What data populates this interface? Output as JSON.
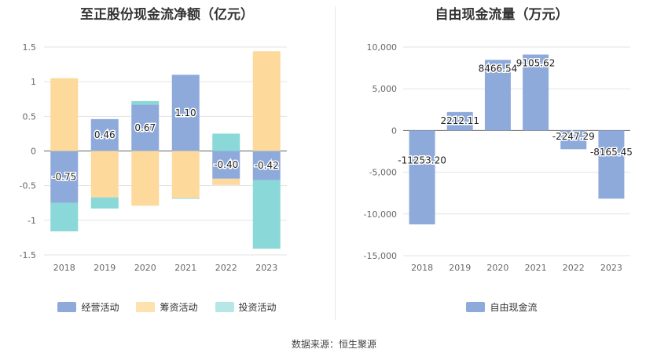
{
  "source": "数据来源：恒生聚源",
  "chart_data": [
    {
      "type": "bar",
      "stacked": true,
      "title": "至正股份现金流净额（亿元）",
      "categories": [
        "2018",
        "2019",
        "2020",
        "2021",
        "2022",
        "2023"
      ],
      "ylim": [
        -1.5,
        1.5
      ],
      "yticks": [
        "1.5",
        "1",
        "0.5",
        "0",
        "-0.5",
        "-1",
        "-1.5"
      ],
      "ytick_values": [
        1.5,
        1,
        0.5,
        0,
        -0.5,
        -1,
        -1.5
      ],
      "grid": true,
      "legend_position": "bottom",
      "series": [
        {
          "name": "经营活动",
          "color": "#8eaadb",
          "values": [
            -0.75,
            0.46,
            0.67,
            1.1,
            -0.4,
            -0.42
          ],
          "labels": [
            "-0.75",
            "0.46",
            "0.67",
            "1.10",
            "-0.40",
            "-0.42"
          ]
        },
        {
          "name": "筹资活动",
          "color": "#fdd99b",
          "values": [
            1.05,
            -0.67,
            -0.79,
            -0.68,
            -0.09,
            1.44
          ]
        },
        {
          "name": "投资活动",
          "color": "#8ad8d8",
          "values": [
            -0.41,
            -0.16,
            0.05,
            -0.01,
            0.25,
            -0.99
          ]
        }
      ]
    },
    {
      "type": "bar",
      "title": "自由现金流量（万元）",
      "categories": [
        "2018",
        "2019",
        "2020",
        "2021",
        "2022",
        "2023"
      ],
      "ylim": [
        -15000,
        10000
      ],
      "yticks": [
        "10,000",
        "5,000",
        "0",
        "-5,000",
        "-10,000",
        "-15,000"
      ],
      "ytick_values": [
        10000,
        5000,
        0,
        -5000,
        -10000,
        -15000
      ],
      "grid": true,
      "legend_position": "bottom",
      "series": [
        {
          "name": "自由现金流",
          "color": "#8eaadb",
          "values": [
            -11253.2,
            2212.11,
            8466.54,
            9105.62,
            -2247.29,
            -8165.45
          ],
          "labels": [
            "-11253.20",
            "2212.11",
            "8466.54",
            "9105.62",
            "-2247.29",
            "-8165.45"
          ]
        }
      ]
    }
  ]
}
